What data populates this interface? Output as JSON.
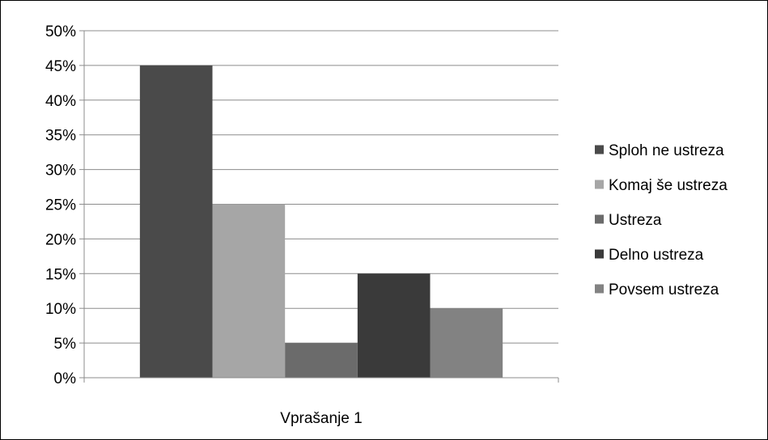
{
  "chart_data": {
    "type": "bar",
    "categories": [
      "Vprašanje 1"
    ],
    "series": [
      {
        "name": "Sploh ne ustreza",
        "values": [
          45
        ],
        "color": "#4a4a4a"
      },
      {
        "name": "Komaj še ustreza",
        "values": [
          25
        ],
        "color": "#a6a6a6"
      },
      {
        "name": "Ustreza",
        "values": [
          5
        ],
        "color": "#6b6b6b"
      },
      {
        "name": "Delno ustreza",
        "values": [
          15
        ],
        "color": "#3a3a3a"
      },
      {
        "name": "Povsem ustreza",
        "values": [
          10
        ],
        "color": "#828282"
      }
    ],
    "ylim": [
      0,
      50
    ],
    "yticks": [
      "0%",
      "5%",
      "10%",
      "15%",
      "20%",
      "25%",
      "30%",
      "35%",
      "40%",
      "45%",
      "50%"
    ],
    "ytick_values": [
      0,
      5,
      10,
      15,
      20,
      25,
      30,
      35,
      40,
      45,
      50
    ],
    "grid": true,
    "legend_position": "right",
    "title": "",
    "xlabel": "",
    "ylabel": ""
  }
}
